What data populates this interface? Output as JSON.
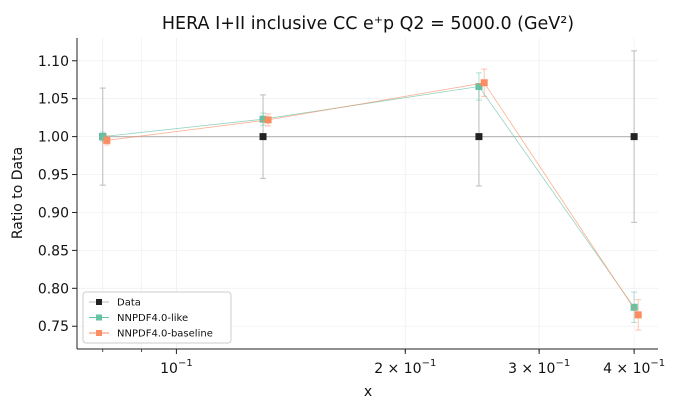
{
  "chart_data": {
    "type": "line",
    "title": "HERA I+II inclusive CC e⁺p Q2 = 5000.0 (GeV²)",
    "xlabel": "x",
    "ylabel": "Ratio to Data",
    "xscale": "log",
    "xlim": [
      0.074,
      0.43
    ],
    "ylim": [
      0.72,
      1.13
    ],
    "grid": true,
    "legend_position": "lower-left",
    "yticks": [
      "0.75",
      "0.80",
      "0.85",
      "0.90",
      "0.95",
      "1.00",
      "1.05",
      "1.10"
    ],
    "xticks": [
      {
        "value": 0.1,
        "mantissa": "",
        "exponent": "−1"
      },
      {
        "value": 0.2,
        "mantissa": "2 × ",
        "exponent": "−1"
      },
      {
        "value": 0.3,
        "mantissa": "3 × ",
        "exponent": "−1"
      },
      {
        "value": 0.4,
        "mantissa": "4 × ",
        "exponent": "−1"
      }
    ],
    "series": [
      {
        "name": "Data",
        "color": "#222222",
        "line_color": "#bbbbbb",
        "x": [
          0.08,
          0.13,
          0.25,
          0.4
        ],
        "y": [
          1.0,
          1.0,
          1.0,
          1.0
        ],
        "yerr": [
          0.064,
          0.055,
          0.065,
          0.113
        ]
      },
      {
        "name": "NNPDF4.0-like",
        "color": "#66c2a5",
        "x": [
          0.08,
          0.13,
          0.25,
          0.4
        ],
        "y": [
          1.0,
          1.023,
          1.066,
          0.775
        ],
        "yerr": [
          0.006,
          0.008,
          0.018,
          0.02
        ]
      },
      {
        "name": "NNPDF4.0-baseline",
        "color": "#fc8d62",
        "x": [
          0.081,
          0.132,
          0.254,
          0.405
        ],
        "y": [
          0.995,
          1.022,
          1.071,
          0.765
        ],
        "yerr": [
          0.006,
          0.008,
          0.018,
          0.02
        ]
      }
    ]
  }
}
